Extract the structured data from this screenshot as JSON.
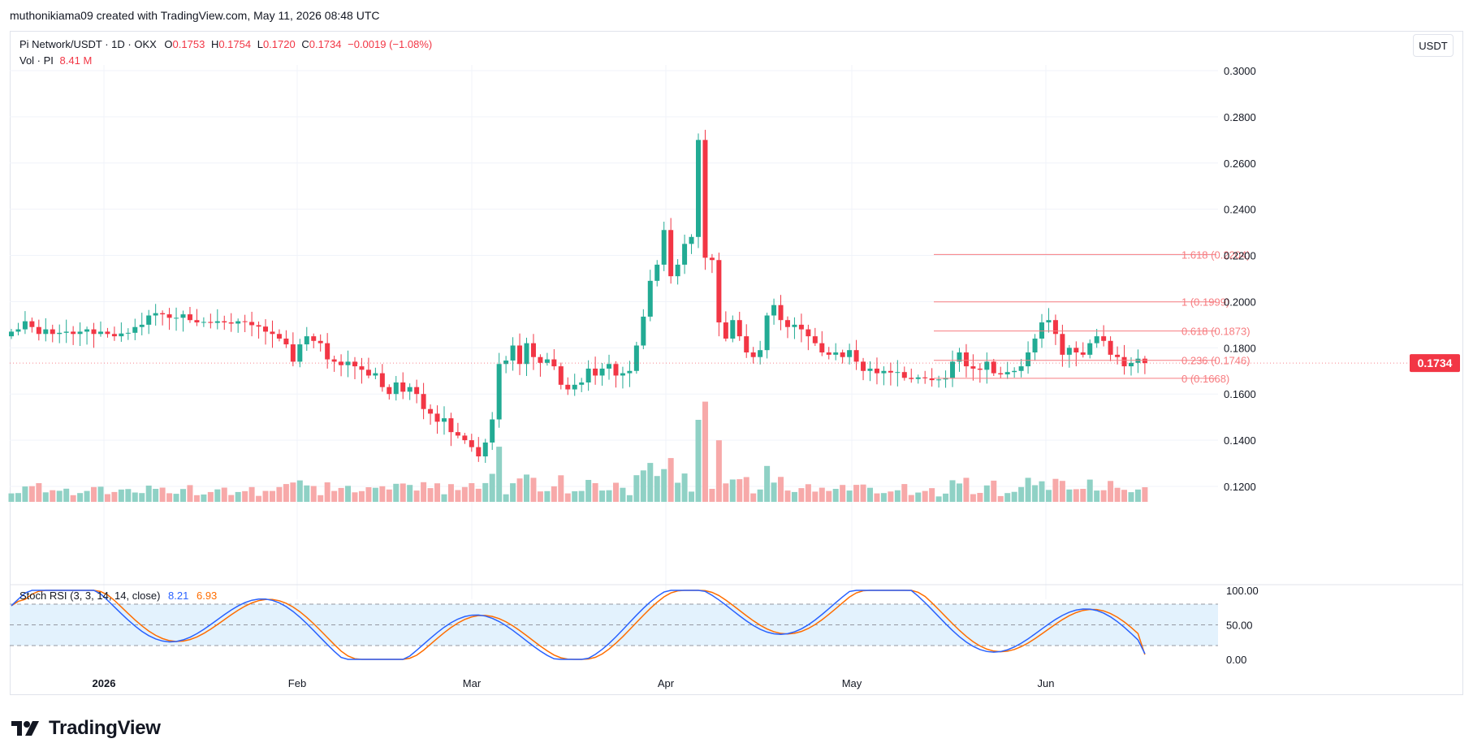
{
  "header": {
    "author_line": "muthonikiama09 created with TradingView.com, May 11, 2026 08:48 UTC"
  },
  "legend": {
    "symbol": "Pi Network/USDT · 1D · OKX",
    "open_label": "O",
    "open": "0.1753",
    "high_label": "H",
    "high": "0.1754",
    "low_label": "L",
    "low": "0.1720",
    "close_label": "C",
    "close": "0.1734",
    "change": "−0.0019 (−1.08%)",
    "vol_label": "Vol · PI",
    "vol": "8.41 M"
  },
  "currency_button": "USDT",
  "stoch_legend": {
    "name": "Stoch RSI (3, 3, 14, 14, close)",
    "k": "8.21",
    "d": "6.93"
  },
  "last_price_tag": "0.1734",
  "brand": "TradingView",
  "colors": {
    "up": "#22ab94",
    "down": "#f23645",
    "vol_up": "#8fd1c5",
    "vol_down": "#f7a9a9",
    "stoch_k": "#2962ff",
    "stoch_d": "#ff6d00",
    "stoch_band": "#e3f2fd",
    "fib": "#f77c80"
  },
  "chart_data": [
    {
      "type": "candlestick",
      "x_ticks": [
        "2026",
        "Feb",
        "Mar",
        "Apr",
        "May",
        "Jun"
      ],
      "y_ticks": [
        "0.3000",
        "0.2800",
        "0.2600",
        "0.2400",
        "0.2200",
        "0.2000",
        "0.1800",
        "0.1600",
        "0.1400",
        "0.1200"
      ],
      "ylim": [
        0.1155,
        0.3
      ]
    },
    {
      "type": "fibonacci",
      "levels": [
        {
          "label": "1.618 (0.2204)",
          "value": 0.2204
        },
        {
          "label": "1 (0.1999)",
          "value": 0.1999
        },
        {
          "label": "0.618 (0.1873)",
          "value": 0.1873
        },
        {
          "label": "0.236 (0.1746)",
          "value": 0.1746
        },
        {
          "label": "0 (0.1668)",
          "value": 0.1668
        }
      ]
    },
    {
      "type": "line",
      "name": "Stoch RSI",
      "y_ticks": [
        "100.00",
        "50.00",
        "0.00"
      ],
      "bands": [
        80,
        50,
        20
      ],
      "ylim": [
        0,
        100
      ]
    }
  ]
}
